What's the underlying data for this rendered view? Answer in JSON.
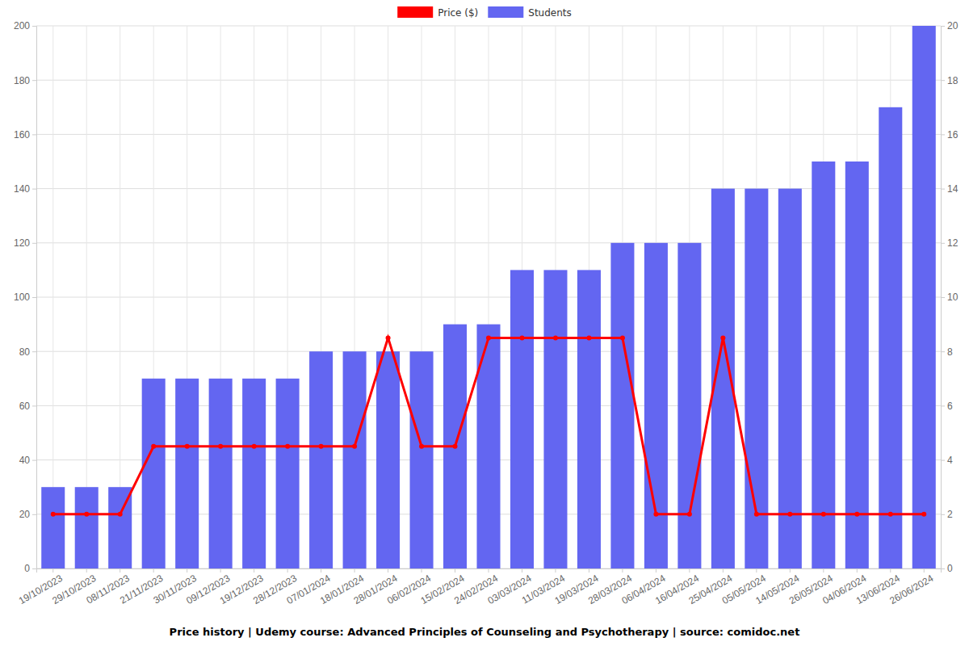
{
  "chart_data": {
    "type": "bar",
    "title": "Price history | Udemy course: Advanced Principles of Counseling and Psychotherapy | source: comidoc.net",
    "categories": [
      "19/10/2023",
      "29/10/2023",
      "08/11/2023",
      "21/11/2023",
      "30/11/2023",
      "09/12/2023",
      "19/12/2023",
      "28/12/2023",
      "07/01/2024",
      "18/01/2024",
      "28/01/2024",
      "06/02/2024",
      "15/02/2024",
      "24/02/2024",
      "03/03/2024",
      "11/03/2024",
      "19/03/2024",
      "28/03/2024",
      "06/04/2024",
      "16/04/2024",
      "25/04/2024",
      "05/05/2024",
      "14/05/2024",
      "26/05/2024",
      "04/06/2024",
      "13/06/2024",
      "26/06/2024"
    ],
    "series": [
      {
        "name": "Price ($)",
        "color": "#ff0000",
        "type": "line",
        "marker": "circle",
        "values": [
          20,
          20,
          20,
          45,
          45,
          45,
          45,
          45,
          45,
          45,
          85,
          45,
          45,
          85,
          85,
          85,
          85,
          85,
          20,
          20,
          85,
          20,
          20,
          20,
          20,
          20,
          20
        ]
      },
      {
        "name": "Students",
        "color": "#6366f1",
        "type": "bar",
        "axis": "y2",
        "values": [
          3,
          3,
          3,
          7,
          7,
          7,
          7,
          7,
          8,
          8,
          8,
          8,
          9,
          9,
          11,
          11,
          11,
          12,
          12,
          12,
          14,
          14,
          14,
          15,
          15,
          17,
          20
        ]
      }
    ],
    "ylim": [
      0,
      200
    ],
    "yticks": [
      0,
      20,
      40,
      60,
      80,
      100,
      120,
      140,
      160,
      180,
      200
    ],
    "y2lim": [
      0,
      20
    ],
    "y2ticks": [
      0,
      2,
      4,
      6,
      8,
      10,
      12,
      14,
      16,
      18,
      20
    ],
    "grid": true,
    "legend": "top"
  }
}
